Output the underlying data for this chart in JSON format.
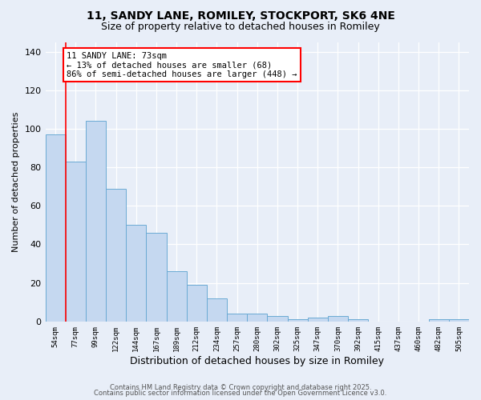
{
  "title": "11, SANDY LANE, ROMILEY, STOCKPORT, SK6 4NE",
  "subtitle": "Size of property relative to detached houses in Romiley",
  "xlabel": "Distribution of detached houses by size in Romiley",
  "ylabel": "Number of detached properties",
  "categories": [
    "54sqm",
    "77sqm",
    "99sqm",
    "122sqm",
    "144sqm",
    "167sqm",
    "189sqm",
    "212sqm",
    "234sqm",
    "257sqm",
    "280sqm",
    "302sqm",
    "325sqm",
    "347sqm",
    "370sqm",
    "392sqm",
    "415sqm",
    "437sqm",
    "460sqm",
    "482sqm",
    "505sqm"
  ],
  "values": [
    97,
    83,
    104,
    69,
    50,
    46,
    26,
    19,
    12,
    4,
    4,
    3,
    1,
    2,
    3,
    1,
    0,
    0,
    0,
    1,
    1
  ],
  "bar_color": "#c5d8f0",
  "bar_edge_color": "#6aaad4",
  "bg_color": "#e8eef8",
  "grid_color": "#ffffff",
  "vline_color": "red",
  "annotation_text": "11 SANDY LANE: 73sqm\n← 13% of detached houses are smaller (68)\n86% of semi-detached houses are larger (448) →",
  "ylim": [
    0,
    145
  ],
  "yticks": [
    0,
    20,
    40,
    60,
    80,
    100,
    120,
    140
  ],
  "footer1": "Contains HM Land Registry data © Crown copyright and database right 2025.",
  "footer2": "Contains public sector information licensed under the Open Government Licence v3.0."
}
